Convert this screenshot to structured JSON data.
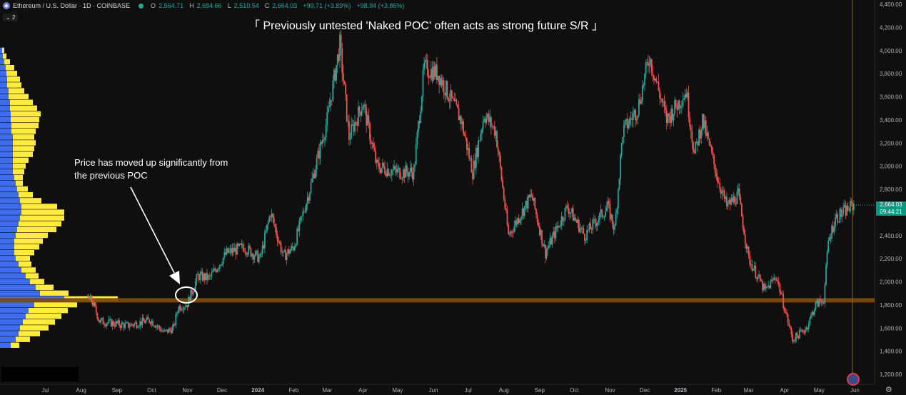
{
  "legend": {
    "symbol": "Ethereum / U.S. Dollar · 1D · COINBASE",
    "open_label": "O",
    "open": "2,564.71",
    "high_label": "H",
    "high": "2,684.66",
    "low_label": "L",
    "low": "2,510.54",
    "close_label": "C",
    "close": "2,664.03",
    "change": "+99.71 (+3.89%)",
    "change2": "+98.94 (+3.86%)",
    "indicator_count": "2"
  },
  "annotations": {
    "title": "「 Previously untested 'Naked POC' often acts as strong future S/R 」",
    "note": "Price has moved up significantly from the previous POC"
  },
  "price_tag": {
    "price": "2,664.03",
    "countdown": "09:44:21"
  },
  "colors": {
    "up": "#26a69a",
    "down": "#ef5350",
    "poc_line": "#7a4a0f",
    "profile_blue": "#3d6cf0",
    "profile_yellow": "#ffeb3b",
    "background": "#0f0f0f"
  },
  "icons": {
    "asset": "ethereum-icon",
    "status": "status-dot-icon",
    "flag": "us-flag-icon",
    "settings": "gear-icon"
  },
  "chart_data": {
    "type": "candlestick",
    "title": "「 Previously untested 'Naked POC' often acts as strong future S/R 」",
    "xlabel": "",
    "ylabel": "",
    "ylim": [
      1100,
      4400
    ],
    "y_ticks": [
      "4,400.00",
      "4,200.00",
      "4,000.00",
      "3,800.00",
      "3,600.00",
      "3,400.00",
      "3,200.00",
      "3,000.00",
      "2,800.00",
      "2,600.00",
      "2,400.00",
      "2,200.00",
      "2,000.00",
      "1,800.00",
      "1,600.00",
      "1,400.00",
      "1,200.00"
    ],
    "y_tick_values": [
      4400,
      4200,
      4000,
      3800,
      3600,
      3400,
      3200,
      3000,
      2800,
      2600,
      2400,
      2200,
      2000,
      1800,
      1600,
      1400,
      1200
    ],
    "x_ticks": [
      "Jul",
      "Aug",
      "Sep",
      "Oct",
      "Nov",
      "Dec",
      "2024",
      "Feb",
      "Mar",
      "Apr",
      "May",
      "Jun",
      "Jul",
      "Aug",
      "Sep",
      "Oct",
      "Nov",
      "Dec",
      "2025",
      "Feb",
      "Mar",
      "Apr",
      "May",
      "Jun"
    ],
    "x_start": "2023-06-01",
    "x_end": "2025-06-10",
    "x_tick_dates": [
      "2023-07-01",
      "2023-08-01",
      "2023-09-01",
      "2023-10-01",
      "2023-11-01",
      "2023-12-01",
      "2024-01-01",
      "2024-02-01",
      "2024-03-01",
      "2024-04-01",
      "2024-05-01",
      "2024-06-01",
      "2024-07-01",
      "2024-08-01",
      "2024-09-01",
      "2024-10-01",
      "2024-11-01",
      "2024-12-01",
      "2025-01-01",
      "2025-02-01",
      "2025-03-01",
      "2025-04-01",
      "2025-05-01",
      "2025-06-01"
    ],
    "poc_level": 1840,
    "last_price": 2664.03,
    "price_path": [
      [
        "2023-06-01",
        1870
      ],
      [
        "2023-06-20",
        1780
      ],
      [
        "2023-07-01",
        1920
      ],
      [
        "2023-07-20",
        1880
      ],
      [
        "2023-08-10",
        1840
      ],
      [
        "2023-08-17",
        1660
      ],
      [
        "2023-09-10",
        1620
      ],
      [
        "2023-09-30",
        1670
      ],
      [
        "2023-10-12",
        1560
      ],
      [
        "2023-10-20",
        1600
      ],
      [
        "2023-10-24",
        1780
      ],
      [
        "2023-11-01",
        1810
      ],
      [
        "2023-11-10",
        2050
      ],
      [
        "2023-11-20",
        2030
      ],
      [
        "2023-12-05",
        2250
      ],
      [
        "2023-12-20",
        2300
      ],
      [
        "2024-01-03",
        2200
      ],
      [
        "2024-01-12",
        2600
      ],
      [
        "2024-01-23",
        2220
      ],
      [
        "2024-02-01",
        2300
      ],
      [
        "2024-02-15",
        2800
      ],
      [
        "2024-03-01",
        3400
      ],
      [
        "2024-03-12",
        4050
      ],
      [
        "2024-03-20",
        3250
      ],
      [
        "2024-04-01",
        3550
      ],
      [
        "2024-04-13",
        3000
      ],
      [
        "2024-04-30",
        2950
      ],
      [
        "2024-05-15",
        2950
      ],
      [
        "2024-05-24",
        3850
      ],
      [
        "2024-06-05",
        3800
      ],
      [
        "2024-06-25",
        3400
      ],
      [
        "2024-07-05",
        2950
      ],
      [
        "2024-07-15",
        3450
      ],
      [
        "2024-07-25",
        3300
      ],
      [
        "2024-08-05",
        2400
      ],
      [
        "2024-08-25",
        2750
      ],
      [
        "2024-09-06",
        2250
      ],
      [
        "2024-09-25",
        2650
      ],
      [
        "2024-10-10",
        2400
      ],
      [
        "2024-10-30",
        2650
      ],
      [
        "2024-11-05",
        2450
      ],
      [
        "2024-11-12",
        3300
      ],
      [
        "2024-11-25",
        3500
      ],
      [
        "2024-12-05",
        3950
      ],
      [
        "2024-12-20",
        3400
      ],
      [
        "2025-01-06",
        3650
      ],
      [
        "2025-01-13",
        3100
      ],
      [
        "2025-01-20",
        3400
      ],
      [
        "2025-02-02",
        2900
      ],
      [
        "2025-02-10",
        2650
      ],
      [
        "2025-02-20",
        2750
      ],
      [
        "2025-03-01",
        2200
      ],
      [
        "2025-03-15",
        1920
      ],
      [
        "2025-03-25",
        2050
      ],
      [
        "2025-04-08",
        1500
      ],
      [
        "2025-04-20",
        1600
      ],
      [
        "2025-04-28",
        1800
      ],
      [
        "2025-05-05",
        1850
      ],
      [
        "2025-05-09",
        2350
      ],
      [
        "2025-05-15",
        2550
      ],
      [
        "2025-05-31",
        2664
      ]
    ],
    "volume_profile": [
      [
        1450,
        15,
        12
      ],
      [
        1500,
        22,
        20
      ],
      [
        1550,
        26,
        30
      ],
      [
        1600,
        28,
        40
      ],
      [
        1650,
        32,
        45
      ],
      [
        1700,
        36,
        50
      ],
      [
        1750,
        40,
        55
      ],
      [
        1800,
        48,
        60
      ],
      [
        1850,
        90,
        75
      ],
      [
        1900,
        56,
        40
      ],
      [
        1950,
        50,
        25
      ],
      [
        2000,
        42,
        20
      ],
      [
        2050,
        36,
        18
      ],
      [
        2100,
        30,
        20
      ],
      [
        2150,
        26,
        18
      ],
      [
        2200,
        22,
        20
      ],
      [
        2250,
        20,
        28
      ],
      [
        2300,
        20,
        35
      ],
      [
        2350,
        20,
        40
      ],
      [
        2400,
        22,
        45
      ],
      [
        2450,
        24,
        55
      ],
      [
        2500,
        26,
        60
      ],
      [
        2550,
        28,
        62
      ],
      [
        2600,
        30,
        60
      ],
      [
        2650,
        30,
        50
      ],
      [
        2700,
        28,
        30
      ],
      [
        2750,
        26,
        20
      ],
      [
        2800,
        24,
        15
      ],
      [
        2850,
        22,
        10
      ],
      [
        2900,
        20,
        12
      ],
      [
        2950,
        18,
        16
      ],
      [
        3000,
        18,
        18
      ],
      [
        3050,
        18,
        22
      ],
      [
        3100,
        18,
        28
      ],
      [
        3150,
        18,
        30
      ],
      [
        3200,
        18,
        32
      ],
      [
        3250,
        18,
        30
      ],
      [
        3300,
        16,
        34
      ],
      [
        3350,
        16,
        38
      ],
      [
        3400,
        15,
        40
      ],
      [
        3450,
        15,
        42
      ],
      [
        3500,
        14,
        38
      ],
      [
        3550,
        14,
        32
      ],
      [
        3600,
        12,
        28
      ],
      [
        3650,
        12,
        22
      ],
      [
        3700,
        10,
        20
      ],
      [
        3750,
        10,
        18
      ],
      [
        3800,
        9,
        15
      ],
      [
        3850,
        8,
        12
      ],
      [
        3900,
        6,
        8
      ],
      [
        3950,
        4,
        5
      ],
      [
        4000,
        3,
        3
      ]
    ]
  }
}
